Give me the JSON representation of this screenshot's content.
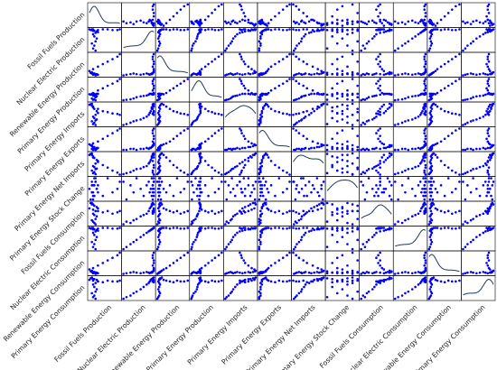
{
  "chart_data": {
    "type": "scatter_matrix",
    "color": "#0000ff",
    "diagonal": "kde",
    "kde_color": "#1f3a5f",
    "variables": [
      {
        "name": "Fossil Fuels Production",
        "values": [
          60,
          58,
          59,
          57,
          60,
          61,
          59,
          58,
          60,
          62,
          61,
          59,
          58,
          57,
          56,
          57,
          55,
          58,
          62,
          66,
          70,
          74,
          78,
          80
        ]
      },
      {
        "name": "Nuclear Electric Production",
        "values": [
          5,
          8,
          12,
          15,
          18,
          22,
          25,
          28,
          30,
          31,
          32,
          33,
          33,
          34,
          34,
          35,
          35,
          35,
          34,
          35,
          35,
          34,
          34,
          35
        ]
      },
      {
        "name": "Renewable Energy Production",
        "values": [
          20,
          21,
          22,
          23,
          22,
          21,
          22,
          23,
          22,
          21,
          22,
          23,
          22,
          23,
          24,
          25,
          27,
          30,
          34,
          38,
          42,
          46,
          50,
          54
        ]
      },
      {
        "name": "Primary Energy Production",
        "values": [
          65,
          66,
          67,
          69,
          72,
          74,
          75,
          76,
          78,
          80,
          80,
          80,
          79,
          79,
          78,
          80,
          79,
          82,
          88,
          93,
          99,
          104,
          110,
          115
        ]
      },
      {
        "name": "Primary Energy Imports",
        "values": [
          20,
          22,
          25,
          28,
          30,
          32,
          35,
          38,
          42,
          46,
          50,
          55,
          58,
          62,
          65,
          66,
          64,
          60,
          55,
          50,
          48,
          45,
          44,
          42
        ]
      },
      {
        "name": "Primary Energy Exports",
        "values": [
          5,
          5,
          6,
          6,
          5,
          6,
          6,
          7,
          6,
          7,
          7,
          8,
          8,
          9,
          10,
          10,
          11,
          12,
          14,
          17,
          20,
          23,
          26,
          28
        ]
      },
      {
        "name": "Primary Energy Net Imports",
        "values": [
          15,
          17,
          19,
          22,
          25,
          26,
          29,
          31,
          36,
          39,
          43,
          47,
          50,
          53,
          55,
          56,
          53,
          48,
          41,
          33,
          28,
          22,
          18,
          14
        ]
      },
      {
        "name": "Primary Energy Stock Change",
        "values": [
          2,
          -3,
          1,
          -1,
          3,
          0,
          -2,
          1,
          2,
          -1,
          0,
          3,
          -2,
          1,
          -3,
          2,
          0,
          -1,
          1,
          -2,
          3,
          -1,
          0,
          2
        ]
      },
      {
        "name": "Fossil Fuels Consumption",
        "values": [
          70,
          72,
          71,
          73,
          74,
          76,
          77,
          78,
          80,
          82,
          83,
          84,
          85,
          86,
          86,
          85,
          82,
          81,
          80,
          79,
          80,
          78,
          79,
          80
        ]
      },
      {
        "name": "Nuclear Electric Consumption",
        "values": [
          5,
          8,
          12,
          15,
          18,
          22,
          25,
          28,
          30,
          31,
          32,
          33,
          33,
          34,
          34,
          35,
          35,
          35,
          34,
          35,
          35,
          34,
          34,
          35
        ]
      },
      {
        "name": "Renewable Energy Consumption",
        "values": [
          20,
          21,
          22,
          23,
          22,
          21,
          22,
          23,
          22,
          21,
          22,
          23,
          22,
          23,
          24,
          25,
          27,
          29,
          33,
          37,
          41,
          45,
          49,
          53
        ]
      },
      {
        "name": "Primary Energy Consumption",
        "values": [
          78,
          80,
          82,
          85,
          87,
          90,
          93,
          96,
          98,
          100,
          102,
          103,
          103,
          104,
          104,
          105,
          102,
          101,
          100,
          99,
          101,
          100,
          100,
          101
        ]
      }
    ]
  }
}
